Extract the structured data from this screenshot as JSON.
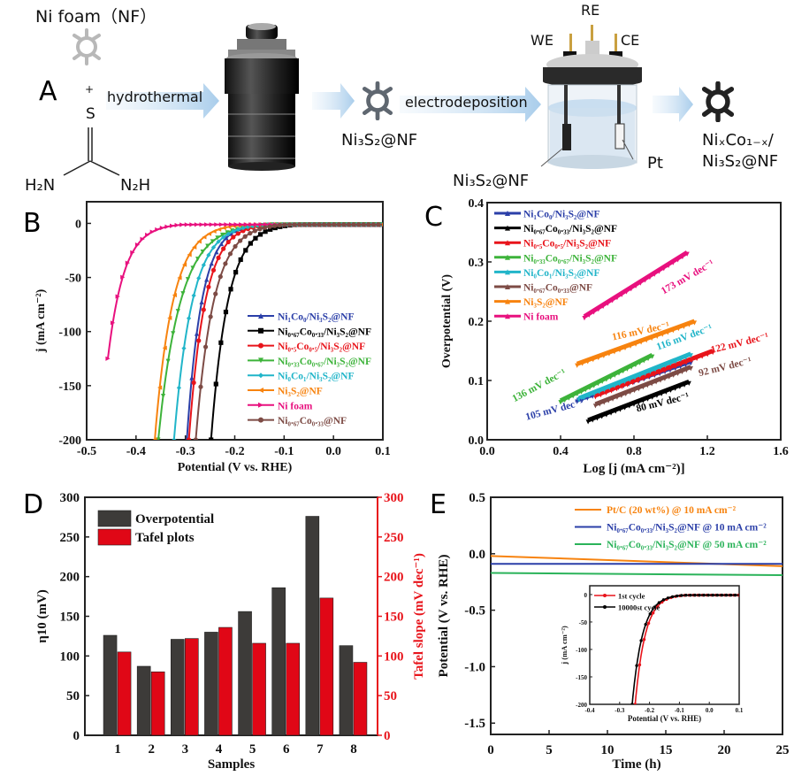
{
  "panel_a": {
    "letter": "A",
    "ni_foam_label": "Ni foam（NF）",
    "plus": "+",
    "thiourea": {
      "s": "S",
      "left": "H₂N",
      "right": "N₂H"
    },
    "arrow1_label": "hydrothermal",
    "intermediate": "Ni₃S₂@NF",
    "arrow2_label": "electrodeposition",
    "electrodes": {
      "we": "WE",
      "re": "RE",
      "ce": "CE"
    },
    "working_label": "Ni₃S₂@NF",
    "counter_label": "Pt",
    "product_line1": "NiₓCo₁₋ₓ/",
    "product_line2": "Ni₃S₂@NF"
  },
  "chart_data": [
    {
      "panel": "B",
      "type": "line",
      "xlabel": "Potential (V vs. RHE)",
      "ylabel": "j (mA cm⁻²)",
      "xlim": [
        -0.5,
        0.1
      ],
      "ylim": [
        -200,
        20
      ],
      "xticks": [
        "-0.5",
        "-0.4",
        "-0.3",
        "-0.2",
        "-0.1",
        "0.0",
        "0.1"
      ],
      "yticks": [
        "0",
        "-50",
        "-100",
        "-150",
        "-200"
      ],
      "legend_position": "bottom-right",
      "series": [
        {
          "name": "Ni₁Co₀/Ni₃S₂@NF",
          "color": "#2b3fa8",
          "marker": "triangle-up",
          "onset": -0.14,
          "x200": -0.297
        },
        {
          "name": "Ni₀.₆₇Co₀.₃₃/Ni₃S₂@NF",
          "color": "#000000",
          "marker": "square",
          "onset": -0.07,
          "x200": -0.248
        },
        {
          "name": "Ni₀.₅Co₀.₅/Ni₃S₂@NF",
          "color": "#e8141b",
          "marker": "circle",
          "onset": -0.12,
          "x200": -0.293
        },
        {
          "name": "Ni₀.₃₃Co₀.₆₇/Ni₃S₂@NF",
          "color": "#3db33a",
          "marker": "triangle-down",
          "onset": -0.12,
          "x200": -0.355
        },
        {
          "name": "Ni₀Co₁/Ni₃S₂@NF",
          "color": "#21b5c9",
          "marker": "diamond",
          "onset": -0.13,
          "x200": -0.323
        },
        {
          "name": "Ni₃S₂@NF",
          "color": "#f7830f",
          "marker": "triangle-left",
          "onset": -0.17,
          "x200": -0.362
        },
        {
          "name": "Ni foam",
          "color": "#e8107e",
          "marker": "triangle-right",
          "onset": -0.3,
          "x125": -0.457
        },
        {
          "name": "Ni₀.₆₇Co₀.₃₃@NF",
          "color": "#7d4b45",
          "marker": "hexagon",
          "onset": -0.09,
          "x200": -0.279
        }
      ]
    },
    {
      "panel": "C",
      "type": "line",
      "xlabel": "Log [j (mA cm⁻²)]",
      "ylabel": "Overpotential (V)",
      "xlim": [
        0.0,
        1.6
      ],
      "ylim": [
        0.0,
        0.4
      ],
      "xticks": [
        "0.0",
        "0.4",
        "0.8",
        "1.2",
        "1.6"
      ],
      "yticks": [
        "0.0",
        "0.1",
        "0.2",
        "0.3",
        "0.4"
      ],
      "legend_position": "top-left",
      "series": [
        {
          "name": "Ni₁Co₀/Ni₃S₂@NF",
          "color": "#2b3fa8",
          "x": [
            0.49,
            1.11
          ],
          "y": [
            0.067,
            0.132
          ],
          "annotation": "105 mV dec⁻¹"
        },
        {
          "name": "Ni₀.₆₇Co₀.₃₃/Ni₃S₂@NF",
          "color": "#000000",
          "x": [
            0.55,
            1.1
          ],
          "y": [
            0.033,
            0.098
          ],
          "annotation": "80 mV dec⁻¹"
        },
        {
          "name": "Ni₀.₅Co₀.₅/Ni₃S₂@NF",
          "color": "#e8141b",
          "x": [
            0.59,
            1.23
          ],
          "y": [
            0.075,
            0.15
          ],
          "annotation": "122 mV dec⁻¹"
        },
        {
          "name": "Ni₀.₃₃Co₀.₆₇/Ni₃S₂@NF",
          "color": "#3db33a",
          "x": [
            0.4,
            0.9
          ],
          "y": [
            0.066,
            0.143
          ],
          "annotation": "136 mV dec⁻¹"
        },
        {
          "name": "Ni₀Co₁/Ni₃S₂@NF",
          "color": "#21b5c9",
          "x": [
            0.5,
            1.11
          ],
          "y": [
            0.07,
            0.145
          ],
          "annotation": "116 mV dec⁻¹"
        },
        {
          "name": "Ni₀.₆₇Co₀.₃₃@NF",
          "color": "#7d4b45",
          "x": [
            0.59,
            1.11
          ],
          "y": [
            0.06,
            0.123
          ],
          "annotation": "92 mV dec⁻¹"
        },
        {
          "name": "Ni₃S₂@NF",
          "color": "#f7830f",
          "x": [
            0.49,
            1.13
          ],
          "y": [
            0.128,
            0.2
          ],
          "annotation": "116 mV dec⁻¹"
        },
        {
          "name": "Ni foam",
          "color": "#e8107e",
          "x": [
            0.53,
            1.09
          ],
          "y": [
            0.208,
            0.316
          ],
          "annotation": "173 mV dec⁻¹"
        }
      ]
    },
    {
      "panel": "D",
      "type": "bar",
      "xlabel": "Samples",
      "ylabel": "η10 (mV)",
      "y2label": "Tafel slope (mV dec⁻¹)",
      "ylim": [
        0,
        300
      ],
      "y2lim": [
        0,
        300
      ],
      "yticks": [
        "0",
        "50",
        "100",
        "150",
        "200",
        "250",
        "300"
      ],
      "categories": [
        "1",
        "2",
        "3",
        "4",
        "5",
        "6",
        "7",
        "8"
      ],
      "legend_position": "top-left",
      "series": [
        {
          "name": "Overpotential",
          "color": "#3d3b39",
          "values": [
            126,
            87,
            121,
            130,
            156,
            186,
            276,
            113
          ]
        },
        {
          "name": "Tafel plots",
          "color": "#e00716",
          "values": [
            105,
            80,
            122,
            136,
            116,
            116,
            173,
            92
          ]
        }
      ]
    },
    {
      "panel": "E",
      "type": "line",
      "xlabel": "Time (h)",
      "ylabel": "Potential (V vs. RHE)",
      "xlim": [
        0,
        25
      ],
      "ylim": [
        -1.6,
        0.5
      ],
      "xticks": [
        "0",
        "5",
        "10",
        "15",
        "20",
        "25"
      ],
      "yticks": [
        "0.5",
        "0.0",
        "-0.5",
        "-1.0",
        "-1.5"
      ],
      "legend_position": "top-right",
      "series": [
        {
          "name": "Pt/C (20 wt%) @ 10 mA cm⁻²",
          "color": "#f7830f",
          "x": [
            0,
            25
          ],
          "y": [
            -0.02,
            -0.11
          ]
        },
        {
          "name": "Ni₀.₆₇Co₀.₃₃/Ni₃S₂@NF @ 10 mA cm⁻²",
          "color": "#2b3fa8",
          "x": [
            0,
            25
          ],
          "y": [
            -0.09,
            -0.09
          ]
        },
        {
          "name": "Ni₀.₆₇Co₀.₃₃/Ni₃S₂@NF @ 50 mA cm⁻²",
          "color": "#2bb35a",
          "x": [
            0,
            25
          ],
          "y": [
            -0.17,
            -0.19
          ]
        }
      ],
      "inset": {
        "type": "line",
        "xlabel": "Potential (V vs. RHE)",
        "ylabel": "j (mA cm⁻²)",
        "xlim": [
          -0.4,
          0.1
        ],
        "ylim": [
          -200,
          10
        ],
        "xticks": [
          "-0.4",
          "-0.3",
          "-0.2",
          "-0.1",
          "0.0",
          "0.1"
        ],
        "yticks": [
          "0",
          "-50",
          "-100",
          "-150",
          "-200"
        ],
        "series": [
          {
            "name": "1st cycle",
            "color": "#e8141b",
            "onset": -0.07,
            "x200": -0.248
          },
          {
            "name": "10000st cycle",
            "color": "#000000",
            "onset": -0.075,
            "x200": -0.258
          }
        ]
      }
    }
  ]
}
